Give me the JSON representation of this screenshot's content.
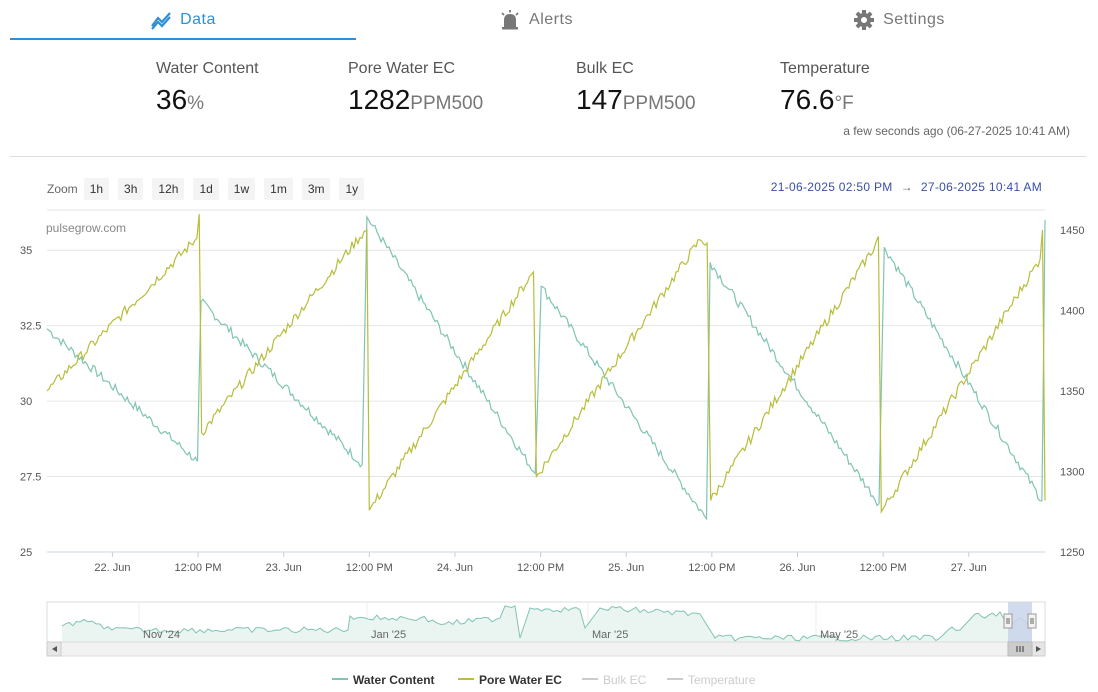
{
  "tabs": [
    {
      "label": "Data",
      "icon": "trend-chart-icon",
      "active": true
    },
    {
      "label": "Alerts",
      "icon": "alarm-bell-icon",
      "active": false
    },
    {
      "label": "Settings",
      "icon": "gear-icon",
      "active": false
    }
  ],
  "metrics": [
    {
      "label": "Water Content",
      "value": "36",
      "unit": "%"
    },
    {
      "label": "Pore Water EC",
      "value": "1282",
      "unit": "PPM500"
    },
    {
      "label": "Bulk EC",
      "value": "147",
      "unit": "PPM500"
    },
    {
      "label": "Temperature",
      "value": "76.6",
      "unit": "°F"
    }
  ],
  "last_updated": "a few seconds ago (06-27-2025 10:41 AM)",
  "zoom": {
    "label": "Zoom",
    "options": [
      "1h",
      "3h",
      "12h",
      "1d",
      "1w",
      "1m",
      "3m",
      "1y"
    ]
  },
  "date_range": {
    "from": "21-06-2025 02:50 PM",
    "arrow": "→",
    "to": "27-06-2025 10:41 AM"
  },
  "watermark": "pulsegrow.com",
  "colors": {
    "accent": "#2f8fd6",
    "water_content": "#7fc4b4",
    "pore_water_ec": "#b8bd3a",
    "inactive_legend": "#cccccc"
  },
  "chart_data": {
    "type": "line",
    "x_range": [
      "2025-06-21 14:50",
      "2025-06-27 10:41"
    ],
    "x_tick_labels": [
      "22. Jun",
      "12:00 PM",
      "23. Jun",
      "12:00 PM",
      "24. Jun",
      "12:00 PM",
      "25. Jun",
      "12:00 PM",
      "26. Jun",
      "12:00 PM",
      "27. Jun"
    ],
    "x_ticks": [
      "2025-06-22 00:00",
      "2025-06-22 12:00",
      "2025-06-23 00:00",
      "2025-06-23 12:00",
      "2025-06-24 00:00",
      "2025-06-24 12:00",
      "2025-06-25 00:00",
      "2025-06-25 12:00",
      "2025-06-26 00:00",
      "2025-06-26 12:00",
      "2025-06-27 00:00"
    ],
    "y_left": {
      "range": [
        25,
        36.2
      ],
      "ticks": [
        25,
        27.5,
        30,
        32.5,
        35
      ],
      "tick_labels": [
        "25",
        "27.5",
        "30",
        "32.5",
        "35"
      ]
    },
    "y_right": {
      "range": [
        1250,
        1460
      ],
      "ticks": [
        1250,
        1300,
        1350,
        1400,
        1450
      ],
      "tick_labels": [
        "1250",
        "1300",
        "1350",
        "1400",
        "1450"
      ]
    },
    "grid": true,
    "legend": {
      "position": "bottom-center"
    },
    "series": [
      {
        "name": "Water Content",
        "axis": "left",
        "visible": true,
        "points": [
          [
            "2025-06-21 14:50",
            32.4
          ],
          [
            "2025-06-22 11:55",
            28.0
          ],
          [
            "2025-06-22 12:25",
            33.3
          ],
          [
            "2025-06-23 11:00",
            27.9
          ],
          [
            "2025-06-23 11:40",
            36.1
          ],
          [
            "2025-06-24 11:15",
            27.6
          ],
          [
            "2025-06-24 12:05",
            33.8
          ],
          [
            "2025-06-25 11:15",
            26.1
          ],
          [
            "2025-06-25 11:45",
            34.6
          ],
          [
            "2025-06-26 11:25",
            26.6
          ],
          [
            "2025-06-26 12:10",
            35.1
          ],
          [
            "2025-06-27 10:15",
            26.7
          ],
          [
            "2025-06-27 10:41",
            36.0
          ]
        ]
      },
      {
        "name": "Pore Water EC",
        "axis": "right",
        "visible": true,
        "points": [
          [
            "2025-06-21 14:50",
            1350
          ],
          [
            "2025-06-22 11:50",
            1445
          ],
          [
            "2025-06-22 12:10",
            1460
          ],
          [
            "2025-06-22 12:30",
            1324
          ],
          [
            "2025-06-23 11:15",
            1449
          ],
          [
            "2025-06-23 11:40",
            1450
          ],
          [
            "2025-06-23 12:00",
            1276
          ],
          [
            "2025-06-24 11:00",
            1424
          ],
          [
            "2025-06-24 11:25",
            1297
          ],
          [
            "2025-06-25 10:20",
            1444
          ],
          [
            "2025-06-25 11:20",
            1442
          ],
          [
            "2025-06-25 11:50",
            1282
          ],
          [
            "2025-06-26 10:50",
            1440
          ],
          [
            "2025-06-26 11:20",
            1446
          ],
          [
            "2025-06-26 11:45",
            1275
          ],
          [
            "2025-06-27 10:00",
            1432
          ],
          [
            "2025-06-27 10:20",
            1450
          ],
          [
            "2025-06-27 10:41",
            1282
          ]
        ]
      },
      {
        "name": "Bulk EC",
        "visible": false,
        "points": []
      },
      {
        "name": "Temperature",
        "visible": false,
        "points": []
      }
    ],
    "navigator": {
      "x_tick_labels": [
        "Nov '24",
        "Jan '25",
        "Mar '25",
        "May '25"
      ]
    }
  }
}
